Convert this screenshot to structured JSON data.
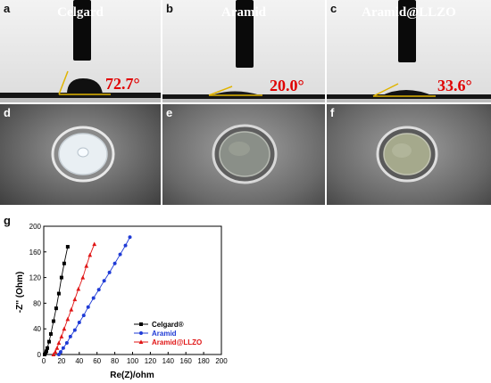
{
  "contact_angle_panels": [
    {
      "label": "a",
      "title": "Celgard",
      "angle": "72.7°"
    },
    {
      "label": "b",
      "title": "Aramid",
      "angle": "20.0°"
    },
    {
      "label": "c",
      "title": "Aramid@LLZO",
      "angle": "33.6°"
    }
  ],
  "photo_panels": [
    {
      "label": "d"
    },
    {
      "label": "e"
    },
    {
      "label": "f"
    }
  ],
  "chart_label": "g",
  "colors": {
    "celgard": "#000000",
    "aramid": "#1f3bd6",
    "llzo": "#e01515",
    "angle_text": "#e00000"
  },
  "chart_data": {
    "type": "scatter",
    "xlabel": "Re(Z)/ohm",
    "ylabel": "-Z'' (Ohm)",
    "xlim": [
      0,
      200
    ],
    "ylim": [
      0,
      200
    ],
    "xticks": [
      "0",
      "20",
      "40",
      "60",
      "80",
      "100",
      "120",
      "140",
      "160",
      "180",
      "200"
    ],
    "yticks": [
      "0",
      "40",
      "80",
      "120",
      "160",
      "200"
    ],
    "legend_position": "bottom-right",
    "series": [
      {
        "name": "Celgard®",
        "marker": "square",
        "color": "#000000",
        "x": [
          1,
          2,
          3,
          4,
          6,
          8,
          11,
          14,
          17,
          20,
          23,
          27
        ],
        "y": [
          0,
          2,
          5,
          10,
          20,
          32,
          52,
          72,
          95,
          120,
          142,
          168
        ]
      },
      {
        "name": "Aramid",
        "marker": "circle",
        "color": "#1f3bd6",
        "x": [
          17,
          19,
          22,
          26,
          30,
          35,
          40,
          45,
          50,
          56,
          62,
          68,
          74,
          80,
          86,
          92,
          97
        ],
        "y": [
          0,
          4,
          10,
          18,
          28,
          38,
          50,
          61,
          74,
          88,
          101,
          115,
          128,
          142,
          156,
          170,
          183
        ]
      },
      {
        "name": "Aramid@LLZO",
        "marker": "triangle",
        "color": "#e01515",
        "x": [
          11,
          13,
          15,
          17,
          20,
          23,
          27,
          31,
          35,
          39,
          44,
          48,
          52,
          57
        ],
        "y": [
          0,
          4,
          10,
          18,
          28,
          40,
          55,
          70,
          86,
          102,
          120,
          138,
          155,
          172
        ]
      }
    ]
  }
}
